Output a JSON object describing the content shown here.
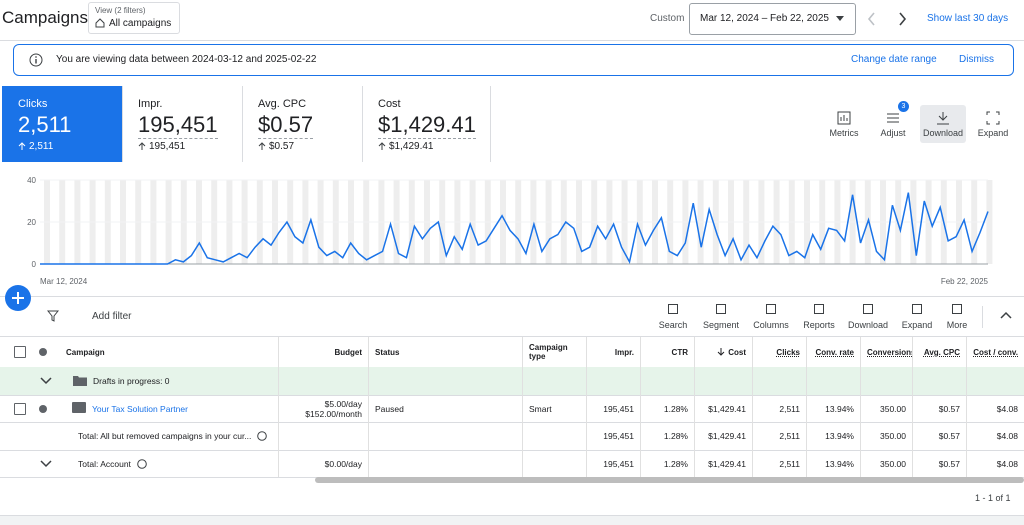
{
  "header": {
    "title": "Campaigns",
    "view_label": "View (2 filters)",
    "view_value": "All campaigns",
    "range_label": "Custom",
    "date_range": "Mar 12, 2024 – Feb 22, 2025",
    "show_last": "Show last 30 days"
  },
  "banner": {
    "text": "You are viewing data between 2024-03-12 and 2025-02-22",
    "change": "Change date range",
    "dismiss": "Dismiss"
  },
  "metrics": [
    {
      "label": "Clicks",
      "value": "2,511",
      "delta": "2,511"
    },
    {
      "label": "Impr.",
      "value": "195,451",
      "delta": "195,451"
    },
    {
      "label": "Avg. CPC",
      "value": "$0.57",
      "delta": "$0.57"
    },
    {
      "label": "Cost",
      "value": "$1,429.41",
      "delta": "$1,429.41"
    }
  ],
  "chart_tools": {
    "metrics": "Metrics",
    "adjust": "Adjust",
    "adjust_badge": "3",
    "download": "Download",
    "expand": "Expand"
  },
  "chart_data": {
    "type": "line",
    "x": [
      "Mar 12, 2024",
      null,
      null,
      null,
      null,
      null,
      null,
      null,
      null,
      null,
      null,
      null,
      null,
      null,
      null,
      null,
      null,
      null,
      null,
      null,
      null,
      null,
      null,
      null,
      null,
      null,
      null,
      null,
      null,
      null,
      null,
      null,
      null,
      null,
      null,
      null,
      null,
      null,
      null,
      null,
      null,
      null,
      null,
      null,
      null,
      null,
      null,
      null,
      null,
      null,
      null,
      null,
      null,
      null,
      null,
      null,
      null,
      null,
      null,
      null,
      null,
      null,
      null,
      null,
      null,
      null,
      null,
      null,
      null,
      null,
      null,
      null,
      null,
      null,
      null,
      null,
      null,
      null,
      null,
      null,
      null,
      null,
      null,
      null,
      null,
      null,
      null,
      null,
      null,
      null,
      null,
      null,
      null,
      null,
      null,
      null,
      null,
      null,
      null,
      null,
      null,
      null,
      null,
      null,
      null,
      null,
      null,
      null,
      null,
      null,
      null,
      null,
      null,
      null,
      null,
      null,
      null,
      null,
      null,
      "Feb 22, 2025"
    ],
    "values": [
      0,
      0,
      0,
      0,
      0,
      0,
      0,
      0,
      0,
      0,
      0,
      0,
      0,
      0,
      0,
      0,
      0,
      2,
      1,
      4,
      10,
      3,
      2,
      1,
      3,
      5,
      3,
      8,
      12,
      9,
      15,
      20,
      13,
      10,
      21,
      8,
      4,
      6,
      3,
      10,
      5,
      2,
      4,
      6,
      19,
      5,
      3,
      18,
      12,
      17,
      20,
      4,
      13,
      7,
      19,
      9,
      11,
      17,
      23,
      16,
      12,
      5,
      19,
      6,
      12,
      14,
      20,
      17,
      6,
      8,
      18,
      12,
      19,
      8,
      1,
      19,
      9,
      16,
      22,
      6,
      4,
      10,
      29,
      8,
      26,
      14,
      4,
      12,
      2,
      9,
      3,
      11,
      18,
      14,
      4,
      6,
      3,
      14,
      7,
      17,
      16,
      11,
      33,
      10,
      21,
      6,
      2,
      28,
      16,
      34,
      4,
      30,
      18,
      27,
      11,
      13,
      21,
      6,
      15,
      25
    ],
    "color": "#1a73e8",
    "ylim": [
      0,
      40
    ],
    "yticks": [
      0,
      20,
      40
    ],
    "grid": true
  },
  "toolbar": {
    "add_filter": "Add filter",
    "tools": [
      "Search",
      "Segment",
      "Columns",
      "Reports",
      "Download",
      "Expand",
      "More"
    ]
  },
  "table": {
    "headers": [
      "Campaign",
      "Budget",
      "Status",
      "Campaign type",
      "Impr.",
      "CTR",
      "Cost",
      "Clicks",
      "Conv. rate",
      "Conversions",
      "Avg. CPC",
      "Cost / conv."
    ],
    "drafts": "Drafts in progress: 0",
    "rows": [
      {
        "name": "Your Tax Solution Partner",
        "budget": [
          "$5.00/day",
          "$152.00/month"
        ],
        "status": "Paused",
        "type": "Smart",
        "metrics": [
          "195,451",
          "1.28%",
          "$1,429.41",
          "2,511",
          "13.94%",
          "350.00",
          "$0.57",
          "$4.08"
        ]
      },
      {
        "name": "Total: All but removed campaigns in your cur...",
        "metrics": [
          "195,451",
          "1.28%",
          "$1,429.41",
          "2,511",
          "13.94%",
          "350.00",
          "$0.57",
          "$4.08"
        ]
      },
      {
        "name": "Total: Account",
        "budget": [
          "$0.00/day"
        ],
        "metrics": [
          "195,451",
          "1.28%",
          "$1,429.41",
          "2,511",
          "13.94%",
          "350.00",
          "$0.57",
          "$4.08"
        ]
      }
    ]
  },
  "pagination": "1 - 1 of 1"
}
